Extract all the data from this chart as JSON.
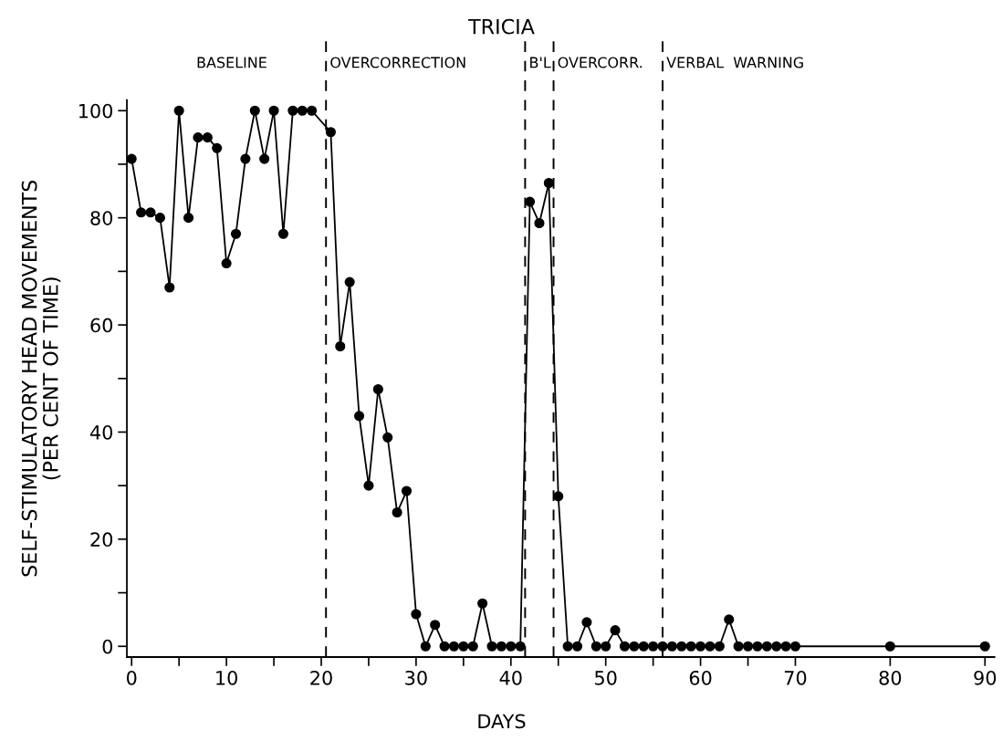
{
  "chart_data": {
    "type": "line",
    "title": "TRICIA",
    "xlabel": "DAYS",
    "ylabel": "SELF-STIMULATORY HEAD MOVEMENTS\n(PER CENT OF TIME)",
    "x": [
      0,
      1,
      2,
      3,
      4,
      5,
      6,
      7,
      8,
      9,
      10,
      11,
      12,
      13,
      14,
      15,
      16,
      17,
      18,
      19,
      21,
      22,
      23,
      24,
      25,
      26,
      27,
      28,
      29,
      30,
      31,
      32,
      33,
      34,
      35,
      36,
      37,
      38,
      39,
      40,
      41,
      42,
      43,
      44,
      45,
      46,
      47,
      48,
      49,
      50,
      51,
      52,
      53,
      54,
      55,
      56,
      57,
      58,
      59,
      60,
      61,
      62,
      63,
      64,
      65,
      66,
      67,
      68,
      69,
      70,
      80,
      90
    ],
    "series": [
      {
        "color": "#000000",
        "values": [
          91,
          81,
          81,
          80,
          67,
          100,
          80,
          95,
          95,
          93,
          71.5,
          77,
          91,
          100,
          91,
          100,
          77,
          100,
          100,
          100,
          96,
          56,
          68,
          43,
          30,
          48,
          39,
          25,
          29,
          6,
          0,
          4,
          0,
          0,
          0,
          0,
          8,
          0,
          0,
          0,
          0,
          83,
          79,
          86.5,
          28,
          0,
          0,
          4.5,
          0,
          0,
          3,
          0,
          0,
          0,
          0,
          0,
          0,
          0,
          0,
          0,
          0,
          0,
          5,
          0,
          0,
          0,
          0,
          0,
          0,
          0,
          0,
          0
        ]
      }
    ],
    "xlim": [
      -0.5,
      91
    ],
    "ylim": [
      -2,
      102
    ],
    "xticks": [
      0,
      {
        "value": 5,
        "label": null
      },
      10,
      {
        "value": 15,
        "label": null
      },
      20,
      {
        "value": 25,
        "label": null
      },
      30,
      {
        "value": 35,
        "label": null
      },
      40,
      {
        "value": 45,
        "label": null
      },
      50,
      {
        "value": 55,
        "label": null
      },
      60,
      {
        "value": 65,
        "label": null
      },
      70,
      80,
      90
    ],
    "yticks": [
      0,
      {
        "value": 10,
        "label": null
      },
      20,
      {
        "value": 30,
        "label": null
      },
      40,
      {
        "value": 50,
        "label": null
      },
      60,
      {
        "value": 70,
        "label": null
      },
      80,
      {
        "value": 90,
        "label": null
      },
      100
    ],
    "ref_lines": [
      {
        "axis": "x",
        "value": 20.5,
        "label": "OVERCORRECTION",
        "line_style": "dashed"
      },
      {
        "axis": "x",
        "value": 41.5,
        "label": "B'L",
        "line_style": "dashed"
      },
      {
        "axis": "x",
        "value": 44.5,
        "label": "OVERCORR.",
        "line_style": "dashed"
      },
      {
        "axis": "x",
        "value": 56,
        "label": "VERBAL  WARNING",
        "line_style": "dashed"
      }
    ],
    "annotations": [
      "BASELINE"
    ],
    "marker": "circle",
    "line_style": "solid",
    "grid": false,
    "legend": false
  }
}
